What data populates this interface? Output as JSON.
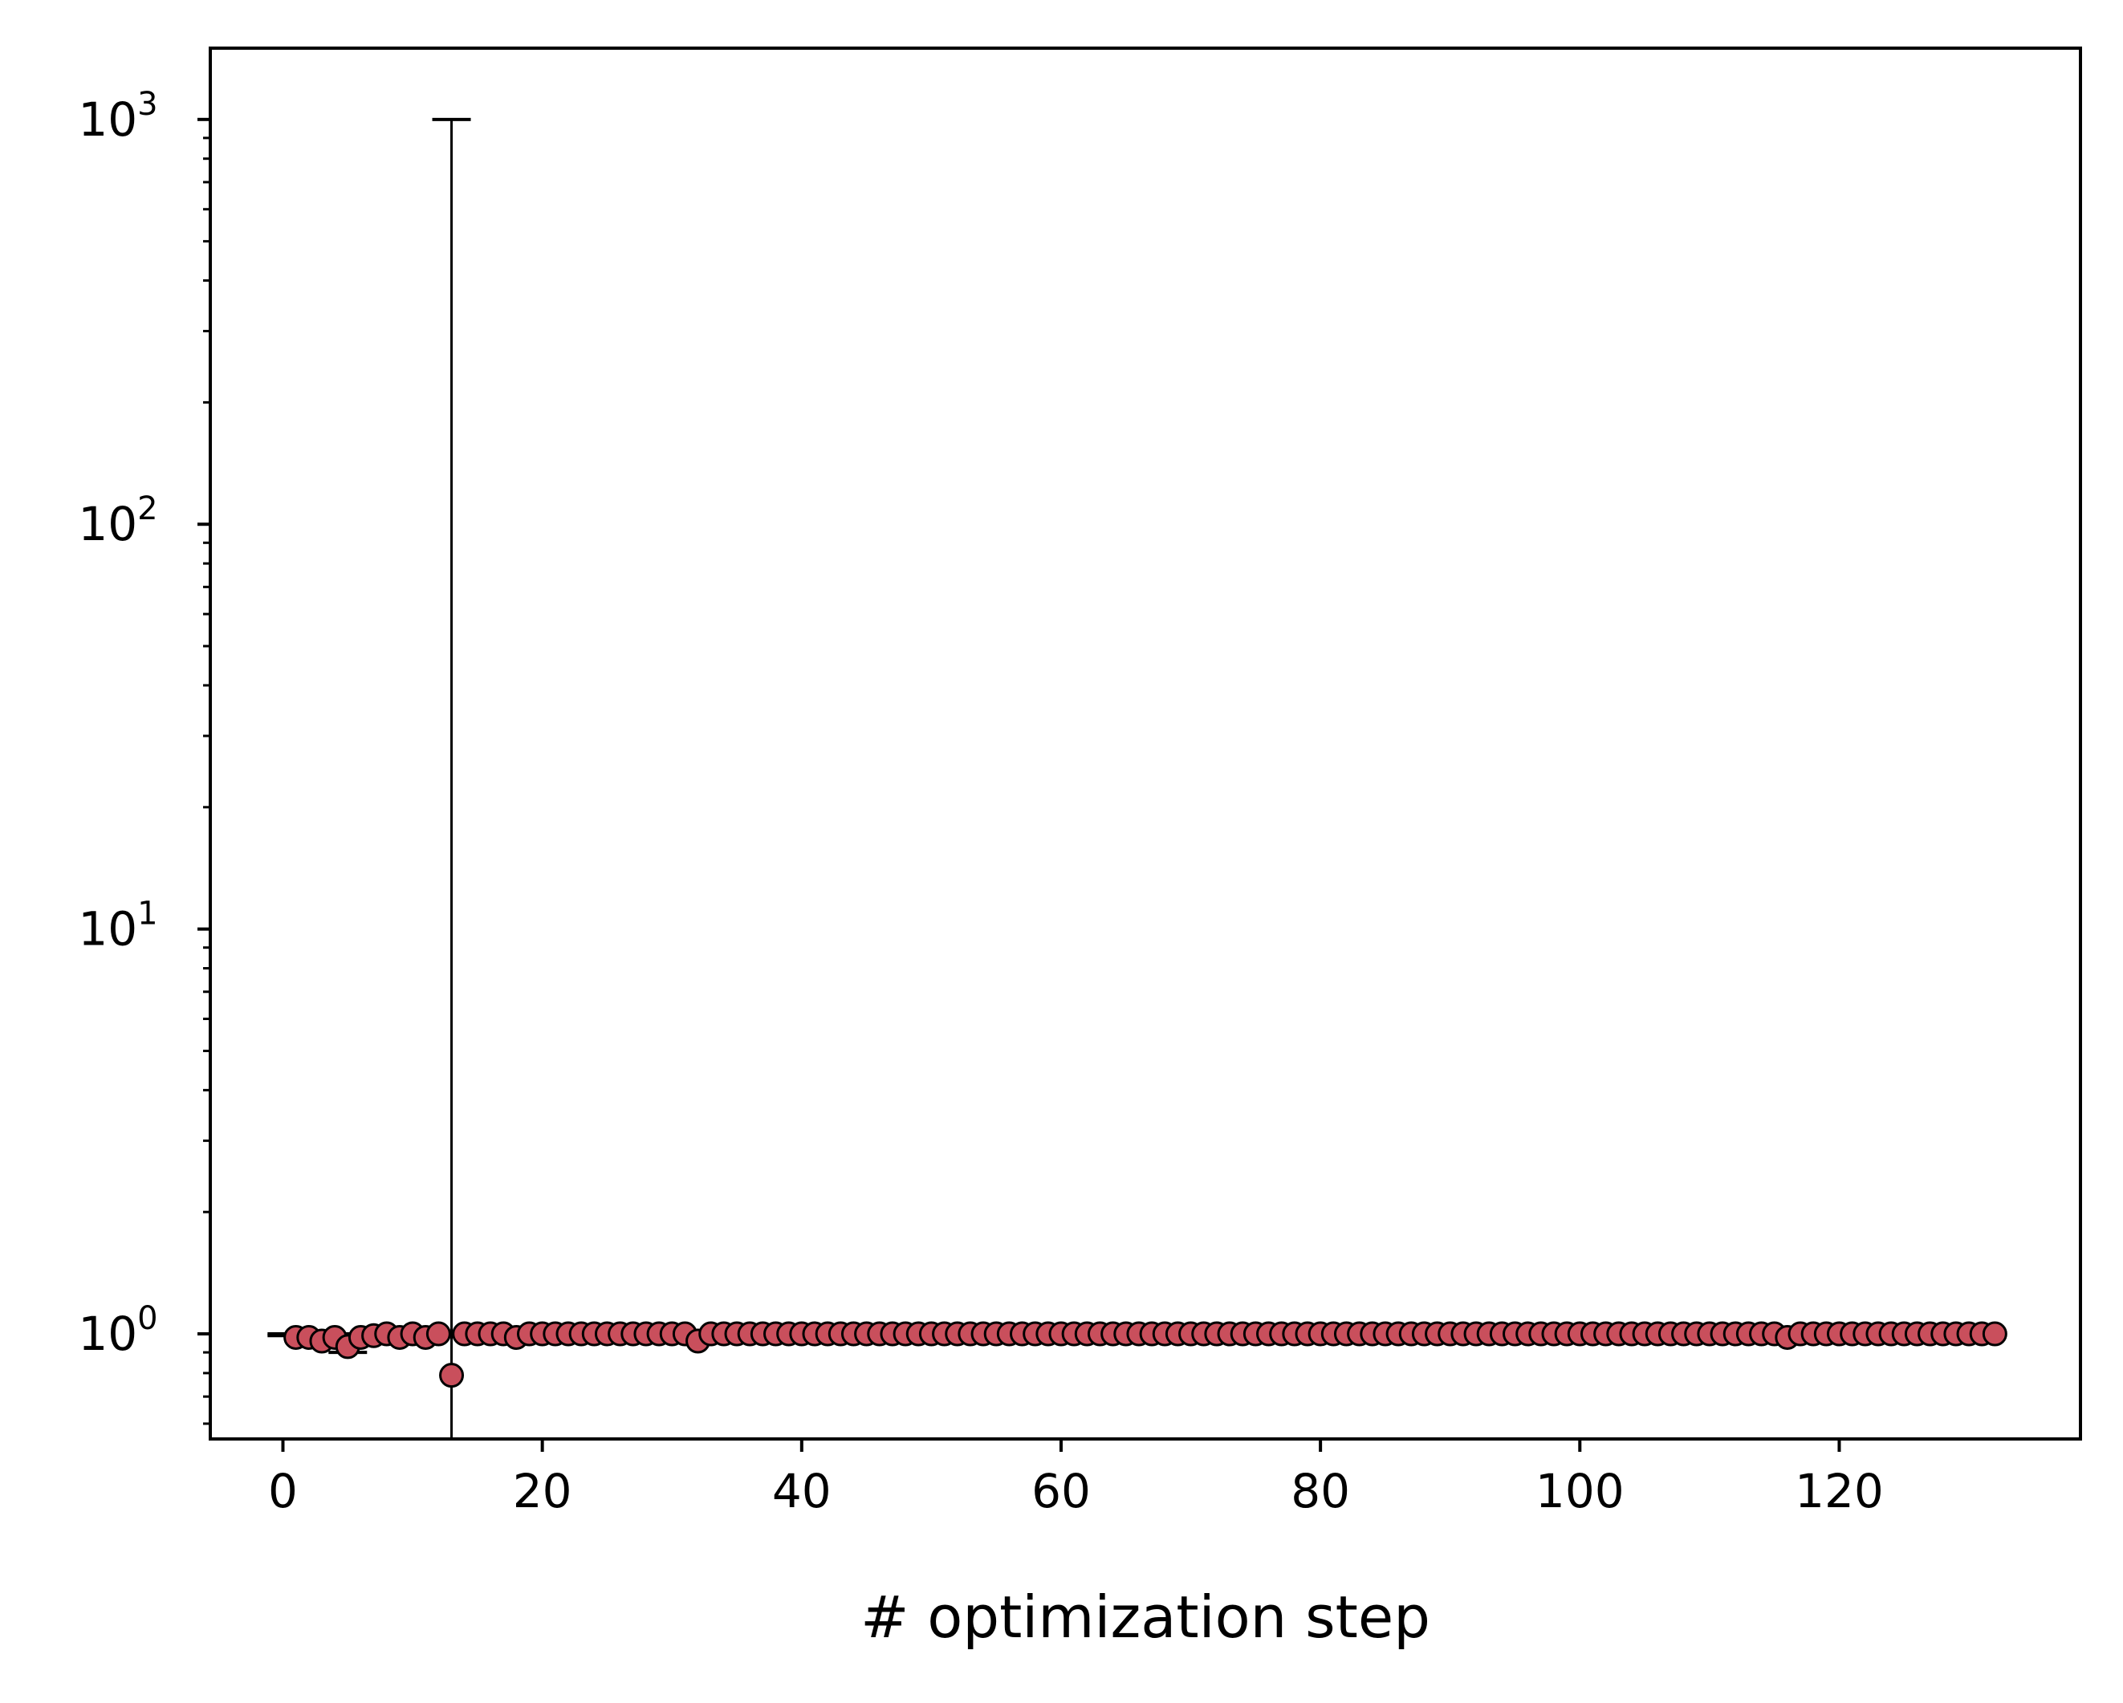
{
  "chart_data": {
    "type": "scatter",
    "title": "",
    "xlabel": "# optimization step",
    "ylabel": "",
    "xlim": [
      -5.6,
      138.6
    ],
    "ylim": [
      0.55,
      1500
    ],
    "yscale": "log",
    "xticks": [
      0,
      20,
      40,
      60,
      80,
      100,
      120
    ],
    "xtick_labels": [
      "0",
      "20",
      "40",
      "60",
      "80",
      "100",
      "120"
    ],
    "yticks": [
      1,
      10,
      100,
      1000
    ],
    "ytick_labels": [
      {
        "base": "10",
        "exp": "0"
      },
      {
        "base": "10",
        "exp": "1"
      },
      {
        "base": "10",
        "exp": "2"
      },
      {
        "base": "10",
        "exp": "3"
      }
    ],
    "grid": false,
    "legend": "none",
    "colors": {
      "marker_fill": "#c94f5c",
      "marker_edge": "#000000",
      "errorbar": "#000000",
      "axes": "#000000"
    },
    "series": [
      {
        "x": [
          1,
          2,
          3,
          4,
          5,
          6,
          7,
          8,
          9,
          10,
          11,
          12,
          13,
          14,
          15,
          16,
          17,
          18,
          19,
          20,
          21,
          22,
          23,
          24,
          25,
          26,
          27,
          28,
          29,
          30,
          31,
          32,
          33,
          34,
          35,
          36,
          37,
          38,
          39,
          40,
          41,
          42,
          43,
          44,
          45,
          46,
          47,
          48,
          49,
          50,
          51,
          52,
          53,
          54,
          55,
          56,
          57,
          58,
          59,
          60,
          61,
          62,
          63,
          64,
          65,
          66,
          67,
          68,
          69,
          70,
          71,
          72,
          73,
          74,
          75,
          76,
          77,
          78,
          79,
          80,
          81,
          82,
          83,
          84,
          85,
          86,
          87,
          88,
          89,
          90,
          91,
          92,
          93,
          94,
          95,
          96,
          97,
          98,
          99,
          100,
          101,
          102,
          103,
          104,
          105,
          106,
          107,
          108,
          109,
          110,
          111,
          112,
          113,
          114,
          115,
          116,
          117,
          118,
          119,
          120,
          121,
          122,
          123,
          124,
          125,
          126,
          127,
          128,
          129,
          130,
          131,
          132
        ],
        "y": [
          0.98,
          0.98,
          0.96,
          0.98,
          0.93,
          0.98,
          0.99,
          1.0,
          0.98,
          1.0,
          0.98,
          1.0,
          0.79,
          1.0,
          1.0,
          1.0,
          1.0,
          0.98,
          1.0,
          1.0,
          1.0,
          1.0,
          1.0,
          1.0,
          1.0,
          1.0,
          1.0,
          1.0,
          1.0,
          1.0,
          1.0,
          0.96,
          1.0,
          1.0,
          1.0,
          1.0,
          1.0,
          1.0,
          1.0,
          1.0,
          1.0,
          1.0,
          1.0,
          1.0,
          1.0,
          1.0,
          1.0,
          1.0,
          1.0,
          1.0,
          1.0,
          1.0,
          1.0,
          1.0,
          1.0,
          1.0,
          1.0,
          1.0,
          1.0,
          1.0,
          1.0,
          1.0,
          1.0,
          1.0,
          1.0,
          1.0,
          1.0,
          1.0,
          1.0,
          1.0,
          1.0,
          1.0,
          1.0,
          1.0,
          1.0,
          1.0,
          1.0,
          1.0,
          1.0,
          1.0,
          1.0,
          1.0,
          1.0,
          1.0,
          1.0,
          1.0,
          1.0,
          1.0,
          1.0,
          1.0,
          1.0,
          1.0,
          1.0,
          1.0,
          1.0,
          1.0,
          1.0,
          1.0,
          1.0,
          1.0,
          1.0,
          1.0,
          1.0,
          1.0,
          1.0,
          1.0,
          1.0,
          1.0,
          1.0,
          1.0,
          1.0,
          1.0,
          1.0,
          1.0,
          1.0,
          0.98,
          1.0,
          1.0,
          1.0,
          1.0,
          1.0,
          1.0,
          1.0,
          1.0,
          1.0,
          1.0,
          1.0,
          1.0,
          1.0,
          1.0,
          1.0,
          1.0
        ],
        "error_bars": [
          {
            "x": 0.3,
            "low": 0.99,
            "high": 1.0
          },
          {
            "x": 5.0,
            "low": 0.9,
            "high": 1.0
          },
          {
            "x": 13,
            "low": 0.55,
            "high": 1000
          }
        ]
      }
    ]
  }
}
